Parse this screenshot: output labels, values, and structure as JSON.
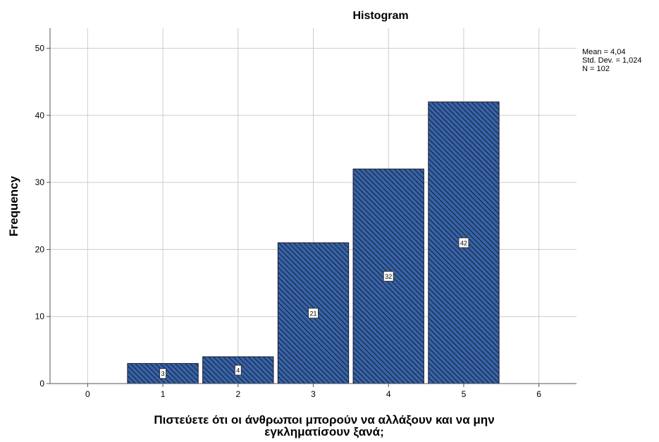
{
  "chart_data": {
    "type": "bar",
    "title": "Histogram",
    "ylabel": "Frequency",
    "xlabel_lines": [
      "Πιστεύετε ότι οι άνθρωποι μπορούν να αλλάξουν και να μην",
      "εγκληματίσουν ξανά;"
    ],
    "categories": [
      1,
      2,
      3,
      4,
      5
    ],
    "values": [
      3,
      4,
      21,
      32,
      42
    ],
    "xlim": [
      -0.5,
      6.5
    ],
    "ylim": [
      0,
      53
    ],
    "xticks": [
      0,
      1,
      2,
      3,
      4,
      5,
      6
    ],
    "yticks": [
      0,
      10,
      20,
      30,
      40,
      50
    ],
    "stats": [
      "Mean = 4,04",
      "Std. Dev. = 1,024",
      "N = 102"
    ],
    "grid": true,
    "bar_color": "#3563a8",
    "hatch_color": "#1a1a2e"
  }
}
